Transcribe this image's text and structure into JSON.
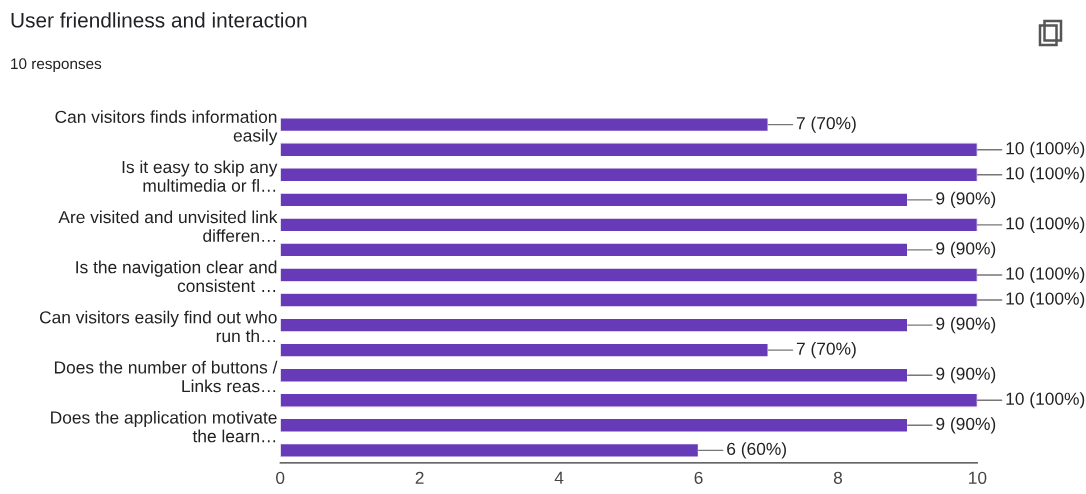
{
  "chart_data": {
    "type": "bar",
    "orientation": "horizontal",
    "title": "User friendliness and interaction",
    "subtitle": "10 responses",
    "categories": [
      "Can visitors finds information\neasily",
      null,
      "Is it easy to skip any\nmultimedia or fl…",
      null,
      "Are visited and unvisited link\ndifferen…",
      null,
      "Is the navigation clear and\nconsistent …",
      null,
      "Can visitors easily find out who\nrun th…",
      null,
      "Does the number of buttons /\nLinks reas…",
      null,
      "Does the application motivate\nthe learn…",
      null
    ],
    "values": [
      7,
      10,
      10,
      9,
      10,
      9,
      10,
      10,
      9,
      7,
      9,
      10,
      9,
      6
    ],
    "value_labels": [
      "7 (70%)",
      "10 (100%)",
      "10 (100%)",
      "9 (90%)",
      "10 (100%)",
      "9 (90%)",
      "10 (100%)",
      "10 (100%)",
      "9 (90%)",
      "7 (70%)",
      "9 (90%)",
      "10 (100%)",
      "9 (90%)",
      "6 (60%)"
    ],
    "color": "#673ab7",
    "xlim": [
      0,
      10
    ],
    "xticks": [
      0,
      2,
      4,
      6,
      8,
      10
    ]
  }
}
